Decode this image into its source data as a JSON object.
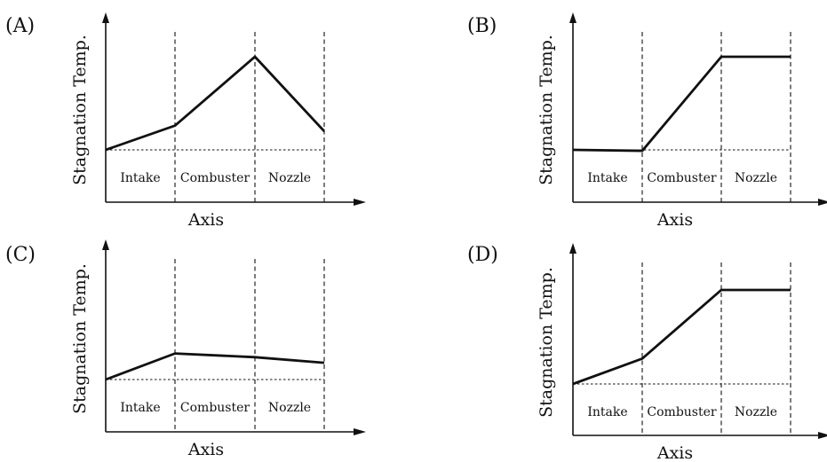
{
  "chart_data": [
    {
      "type": "line",
      "panel_label": "(A)",
      "xlabel": "Axis",
      "ylabel": "Stagnation Temp.",
      "regions": [
        "Intake",
        "Combuster",
        "Nozzle"
      ],
      "x": [
        0,
        1,
        2,
        3
      ],
      "values": [
        0.0,
        0.26,
        1.0,
        0.2
      ],
      "ylim": [
        -0.55,
        1.3
      ],
      "reference_line": 0.0
    },
    {
      "type": "line",
      "panel_label": "(B)",
      "xlabel": "Axis",
      "ylabel": "Stagnation Temp.",
      "regions": [
        "Intake",
        "Combuster",
        "Nozzle"
      ],
      "x": [
        0,
        1,
        2,
        3
      ],
      "values": [
        0.0,
        -0.01,
        1.0,
        1.0
      ],
      "ylim": [
        -0.55,
        1.3
      ],
      "reference_line": 0.0
    },
    {
      "type": "line",
      "panel_label": "(C)",
      "xlabel": "Axis",
      "ylabel": "Stagnation Temp.",
      "regions": [
        "Intake",
        "Combuster",
        "Nozzle"
      ],
      "x": [
        0,
        1,
        2,
        3
      ],
      "values": [
        0.0,
        0.28,
        0.24,
        0.18
      ],
      "ylim": [
        -0.55,
        1.3
      ],
      "reference_line": 0.0
    },
    {
      "type": "line",
      "panel_label": "(D)",
      "xlabel": "Axis",
      "ylabel": "Stagnation Temp.",
      "regions": [
        "Intake",
        "Combuster",
        "Nozzle"
      ],
      "x": [
        0,
        1,
        2,
        3
      ],
      "values": [
        0.0,
        0.27,
        1.0,
        1.0
      ],
      "ylim": [
        -0.55,
        1.3
      ],
      "reference_line": 0.0
    }
  ]
}
